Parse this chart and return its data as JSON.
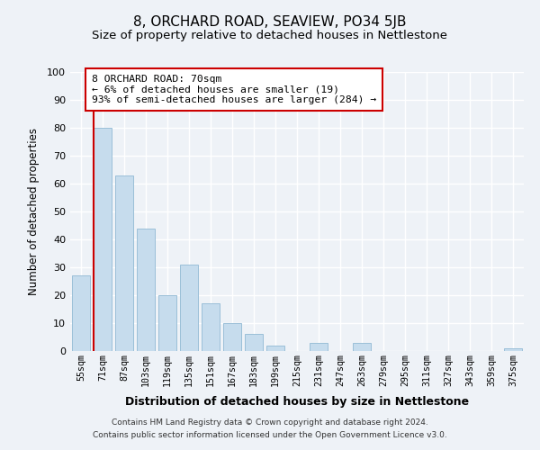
{
  "title": "8, ORCHARD ROAD, SEAVIEW, PO34 5JB",
  "subtitle": "Size of property relative to detached houses in Nettlestone",
  "xlabel": "Distribution of detached houses by size in Nettlestone",
  "ylabel": "Number of detached properties",
  "bar_labels": [
    "55sqm",
    "71sqm",
    "87sqm",
    "103sqm",
    "119sqm",
    "135sqm",
    "151sqm",
    "167sqm",
    "183sqm",
    "199sqm",
    "215sqm",
    "231sqm",
    "247sqm",
    "263sqm",
    "279sqm",
    "295sqm",
    "311sqm",
    "327sqm",
    "343sqm",
    "359sqm",
    "375sqm"
  ],
  "bar_heights": [
    27,
    80,
    63,
    44,
    20,
    31,
    17,
    10,
    6,
    2,
    0,
    3,
    0,
    3,
    0,
    0,
    0,
    0,
    0,
    0,
    1
  ],
  "bar_color": "#c6dced",
  "bar_edge_color": "#9bbfd8",
  "vline_x": 0.5,
  "vline_color": "#cc0000",
  "annotation_title": "8 ORCHARD ROAD: 70sqm",
  "annotation_line1": "← 6% of detached houses are smaller (19)",
  "annotation_line2": "93% of semi-detached houses are larger (284) →",
  "annotation_box_color": "#ffffff",
  "annotation_box_edge": "#cc0000",
  "ylim": [
    0,
    100
  ],
  "yticks": [
    0,
    10,
    20,
    30,
    40,
    50,
    60,
    70,
    80,
    90,
    100
  ],
  "footer1": "Contains HM Land Registry data © Crown copyright and database right 2024.",
  "footer2": "Contains public sector information licensed under the Open Government Licence v3.0.",
  "bg_color": "#eef2f7",
  "title_fontsize": 11,
  "subtitle_fontsize": 9.5
}
